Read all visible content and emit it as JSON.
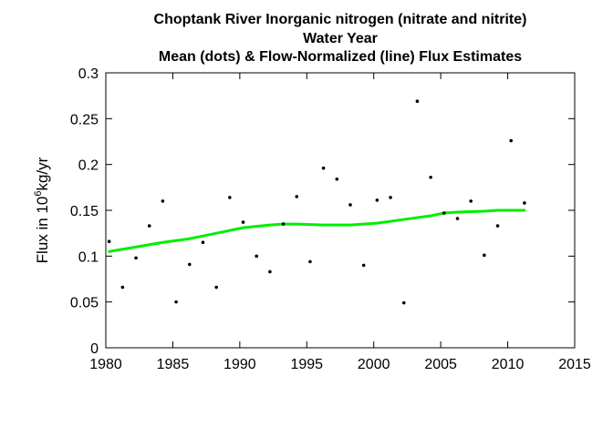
{
  "chart_data": {
    "type": "scatter",
    "title_lines": [
      "Choptank River   Inorganic nitrogen (nitrate and nitrite)",
      "Water Year",
      "Mean (dots) & Flow-Normalized (line) Flux Estimates"
    ],
    "xlabel": "",
    "ylabel": {
      "prefix": "Flux in 10",
      "superscript": "6",
      "units_numerator": "kg",
      "units_denominator": "yr"
    },
    "xlim": [
      1980,
      2015
    ],
    "ylim": [
      0,
      0.3
    ],
    "x_ticks": [
      "1980",
      "1985",
      "1990",
      "1995",
      "2000",
      "2005",
      "2010",
      "2015"
    ],
    "y_ticks": [
      "0",
      "0.05",
      "0.1",
      "0.15",
      "0.2",
      "0.25",
      "0.3"
    ],
    "grid": false,
    "series": [
      {
        "kind": "points",
        "color": "#000000",
        "x": [
          1980.25,
          1981.25,
          1982.25,
          1983.25,
          1984.25,
          1985.25,
          1986.25,
          1987.25,
          1988.25,
          1989.25,
          1990.25,
          1991.25,
          1992.25,
          1993.25,
          1994.25,
          1995.25,
          1996.25,
          1997.25,
          1998.25,
          1999.25,
          2000.25,
          2001.25,
          2002.25,
          2003.25,
          2004.25,
          2005.25,
          2006.25,
          2007.25,
          2008.25,
          2009.25,
          2010.25,
          2011.25
        ],
        "y": [
          0.116,
          0.066,
          0.098,
          0.133,
          0.16,
          0.05,
          0.091,
          0.115,
          0.066,
          0.164,
          0.137,
          0.1,
          0.083,
          0.135,
          0.165,
          0.094,
          0.196,
          0.184,
          0.156,
          0.09,
          0.161,
          0.164,
          0.049,
          0.269,
          0.186,
          0.147,
          0.141,
          0.16,
          0.101,
          0.133,
          0.226,
          0.158
        ]
      },
      {
        "kind": "line",
        "color": "#00ee00",
        "x": [
          1980.25,
          1982.25,
          1984.25,
          1986.25,
          1988.25,
          1990.25,
          1992.25,
          1993.25,
          1994.25,
          1996.25,
          1998.25,
          2000.25,
          2002.25,
          2004.25,
          2005.25,
          2006.25,
          2008.25,
          2009.25,
          2010.25,
          2011.25
        ],
        "y": [
          0.105,
          0.11,
          0.115,
          0.119,
          0.125,
          0.131,
          0.134,
          0.135,
          0.135,
          0.134,
          0.134,
          0.136,
          0.14,
          0.144,
          0.147,
          0.148,
          0.149,
          0.15,
          0.15,
          0.15
        ]
      }
    ]
  }
}
